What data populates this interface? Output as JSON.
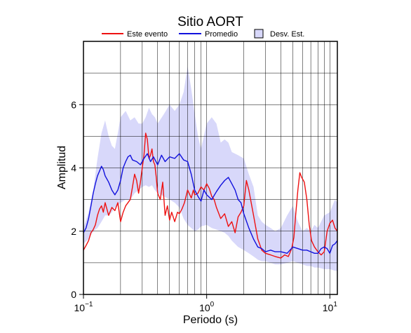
{
  "chart_data": {
    "type": "line",
    "title": "Sitio AORT",
    "xlabel": "Periodo (s)",
    "ylabel": "Amplitud",
    "x_scale": "log",
    "xlim": [
      0.1,
      11.5
    ],
    "ylim": [
      0,
      8
    ],
    "grid": true,
    "legend_position": "top",
    "x_ticks": [
      {
        "value": 0.1,
        "base": "10",
        "exp": "−1"
      },
      {
        "value": 1,
        "base": "10",
        "exp": "0"
      },
      {
        "value": 10,
        "base": "10",
        "exp": "1"
      }
    ],
    "y_ticks": [
      0,
      2,
      4,
      6
    ],
    "legend": {
      "event": "Este evento",
      "mean": "Promedio",
      "std": "Desv. Est."
    },
    "colors": {
      "event": "#ee1111",
      "mean": "#1111dd",
      "band_fill": "#d8d8fa",
      "band_edge": "#000000",
      "grid": "#000000",
      "axis": "#000000"
    },
    "series": [
      {
        "name": "Este evento",
        "color": "#ee1111",
        "x": [
          0.1,
          0.105,
          0.11,
          0.115,
          0.12,
          0.125,
          0.13,
          0.135,
          0.14,
          0.145,
          0.15,
          0.16,
          0.17,
          0.18,
          0.19,
          0.2,
          0.21,
          0.22,
          0.23,
          0.24,
          0.25,
          0.26,
          0.27,
          0.28,
          0.29,
          0.3,
          0.31,
          0.32,
          0.33,
          0.34,
          0.35,
          0.36,
          0.37,
          0.38,
          0.39,
          0.4,
          0.42,
          0.44,
          0.46,
          0.48,
          0.5,
          0.52,
          0.55,
          0.58,
          0.6,
          0.63,
          0.66,
          0.7,
          0.72,
          0.75,
          0.78,
          0.8,
          0.85,
          0.9,
          0.95,
          1.0,
          1.05,
          1.1,
          1.15,
          1.2,
          1.3,
          1.4,
          1.5,
          1.6,
          1.7,
          1.8,
          1.9,
          2.0,
          2.1,
          2.2,
          2.4,
          2.6,
          2.8,
          3.0,
          3.3,
          3.6,
          4.0,
          4.3,
          4.6,
          4.9,
          5.1,
          5.3,
          5.5,
          5.7,
          5.9,
          6.2,
          6.5,
          6.8,
          7.1,
          7.5,
          8.0,
          8.5,
          9.0,
          9.5,
          10.0,
          10.5,
          11.0,
          11.5
        ],
        "y": [
          1.4,
          1.55,
          1.7,
          1.95,
          2.05,
          2.2,
          2.5,
          2.7,
          2.8,
          2.6,
          2.9,
          2.5,
          2.75,
          2.65,
          2.9,
          2.3,
          2.6,
          2.8,
          2.9,
          3.0,
          3.4,
          3.8,
          3.6,
          3.2,
          3.55,
          4.0,
          4.4,
          5.1,
          4.9,
          4.3,
          4.4,
          4.6,
          4.2,
          4.1,
          3.7,
          3.2,
          3.0,
          3.55,
          2.5,
          2.8,
          2.35,
          2.6,
          2.3,
          2.6,
          2.55,
          2.7,
          2.9,
          3.3,
          3.2,
          3.05,
          3.3,
          3.15,
          3.2,
          3.4,
          3.3,
          3.5,
          3.35,
          3.1,
          3.0,
          2.75,
          2.4,
          2.55,
          2.15,
          2.3,
          1.95,
          2.45,
          2.6,
          2.8,
          3.6,
          3.3,
          2.5,
          1.75,
          1.4,
          1.3,
          1.25,
          1.2,
          1.15,
          1.25,
          1.2,
          1.45,
          1.8,
          2.6,
          3.3,
          3.85,
          3.7,
          3.55,
          3.0,
          2.2,
          1.7,
          1.5,
          1.35,
          1.25,
          1.35,
          2.0,
          2.25,
          2.35,
          2.1,
          2.0
        ]
      },
      {
        "name": "Promedio",
        "color": "#1111dd",
        "x": [
          0.1,
          0.105,
          0.11,
          0.115,
          0.12,
          0.125,
          0.13,
          0.135,
          0.14,
          0.145,
          0.15,
          0.16,
          0.17,
          0.18,
          0.19,
          0.2,
          0.21,
          0.22,
          0.23,
          0.24,
          0.25,
          0.27,
          0.29,
          0.31,
          0.33,
          0.35,
          0.37,
          0.4,
          0.43,
          0.46,
          0.5,
          0.55,
          0.6,
          0.65,
          0.7,
          0.75,
          0.8,
          0.85,
          0.9,
          0.95,
          1.0,
          1.1,
          1.2,
          1.3,
          1.4,
          1.5,
          1.6,
          1.7,
          1.8,
          1.9,
          2.0,
          2.2,
          2.4,
          2.6,
          2.8,
          3.0,
          3.3,
          3.6,
          4.0,
          4.5,
          5.0,
          5.5,
          6.0,
          6.5,
          7.0,
          7.5,
          8.0,
          8.5,
          9.0,
          9.5,
          10.0,
          10.5,
          11.0,
          11.5
        ],
        "y": [
          1.95,
          2.1,
          2.4,
          2.8,
          3.2,
          3.5,
          3.75,
          3.9,
          4.05,
          3.95,
          3.75,
          3.55,
          3.3,
          3.15,
          3.3,
          3.6,
          4.0,
          4.2,
          4.35,
          4.4,
          4.25,
          4.2,
          4.1,
          4.3,
          4.45,
          4.2,
          4.35,
          4.1,
          4.4,
          4.2,
          4.35,
          4.3,
          4.45,
          4.25,
          4.2,
          3.8,
          3.3,
          3.1,
          2.95,
          3.3,
          3.15,
          3.0,
          3.25,
          3.45,
          3.6,
          3.7,
          3.5,
          3.3,
          3.0,
          2.9,
          2.55,
          2.1,
          1.75,
          1.5,
          1.45,
          1.35,
          1.4,
          1.35,
          1.35,
          1.3,
          1.5,
          1.45,
          1.4,
          1.4,
          1.35,
          1.3,
          1.3,
          1.45,
          1.5,
          1.45,
          1.3,
          1.55,
          1.6,
          1.7
        ]
      }
    ],
    "std_band": {
      "name": "Desv. Est.",
      "x": [
        0.1,
        0.11,
        0.12,
        0.13,
        0.14,
        0.15,
        0.16,
        0.17,
        0.18,
        0.19,
        0.2,
        0.22,
        0.24,
        0.26,
        0.28,
        0.3,
        0.32,
        0.34,
        0.36,
        0.38,
        0.4,
        0.45,
        0.5,
        0.55,
        0.6,
        0.65,
        0.7,
        0.75,
        0.8,
        0.85,
        0.9,
        1.0,
        1.1,
        1.2,
        1.3,
        1.4,
        1.5,
        1.6,
        1.8,
        2.0,
        2.2,
        2.4,
        2.6,
        2.8,
        3.0,
        3.3,
        3.6,
        4.0,
        4.5,
        5.0,
        5.5,
        6.0,
        6.5,
        7.0,
        7.5,
        8.0,
        9.0,
        10.0,
        11.0,
        11.5
      ],
      "upper": [
        2.1,
        2.6,
        3.3,
        4.3,
        5.1,
        5.5,
        5.0,
        4.7,
        4.6,
        5.1,
        5.6,
        5.8,
        5.5,
        5.6,
        5.4,
        5.4,
        5.6,
        5.9,
        5.7,
        5.6,
        5.4,
        5.7,
        6.0,
        5.8,
        6.0,
        6.4,
        7.2,
        6.5,
        5.7,
        5.0,
        4.6,
        5.4,
        5.6,
        5.4,
        4.8,
        4.9,
        4.8,
        4.5,
        4.4,
        4.3,
        3.8,
        3.4,
        2.5,
        2.3,
        2.2,
        2.1,
        2.0,
        2.1,
        2.5,
        2.8,
        2.3,
        2.0,
        2.1,
        2.0,
        2.2,
        2.1,
        2.5,
        2.6,
        3.0,
        2.9
      ],
      "lower": [
        1.6,
        1.75,
        2.0,
        2.1,
        2.3,
        2.5,
        2.5,
        2.6,
        2.75,
        2.8,
        2.9,
        3.0,
        3.0,
        3.2,
        3.3,
        3.4,
        3.45,
        3.4,
        3.45,
        3.3,
        3.2,
        3.1,
        3.0,
        2.9,
        2.75,
        2.4,
        2.2,
        2.1,
        2.0,
        2.05,
        2.15,
        2.2,
        2.1,
        2.05,
        2.0,
        1.95,
        1.85,
        1.7,
        1.5,
        1.4,
        1.3,
        1.2,
        1.1,
        1.05,
        1.05,
        1.0,
        0.95,
        0.95,
        1.0,
        1.05,
        1.0,
        0.95,
        0.9,
        0.9,
        0.85,
        0.85,
        0.8,
        0.8,
        0.75,
        0.75
      ]
    }
  }
}
